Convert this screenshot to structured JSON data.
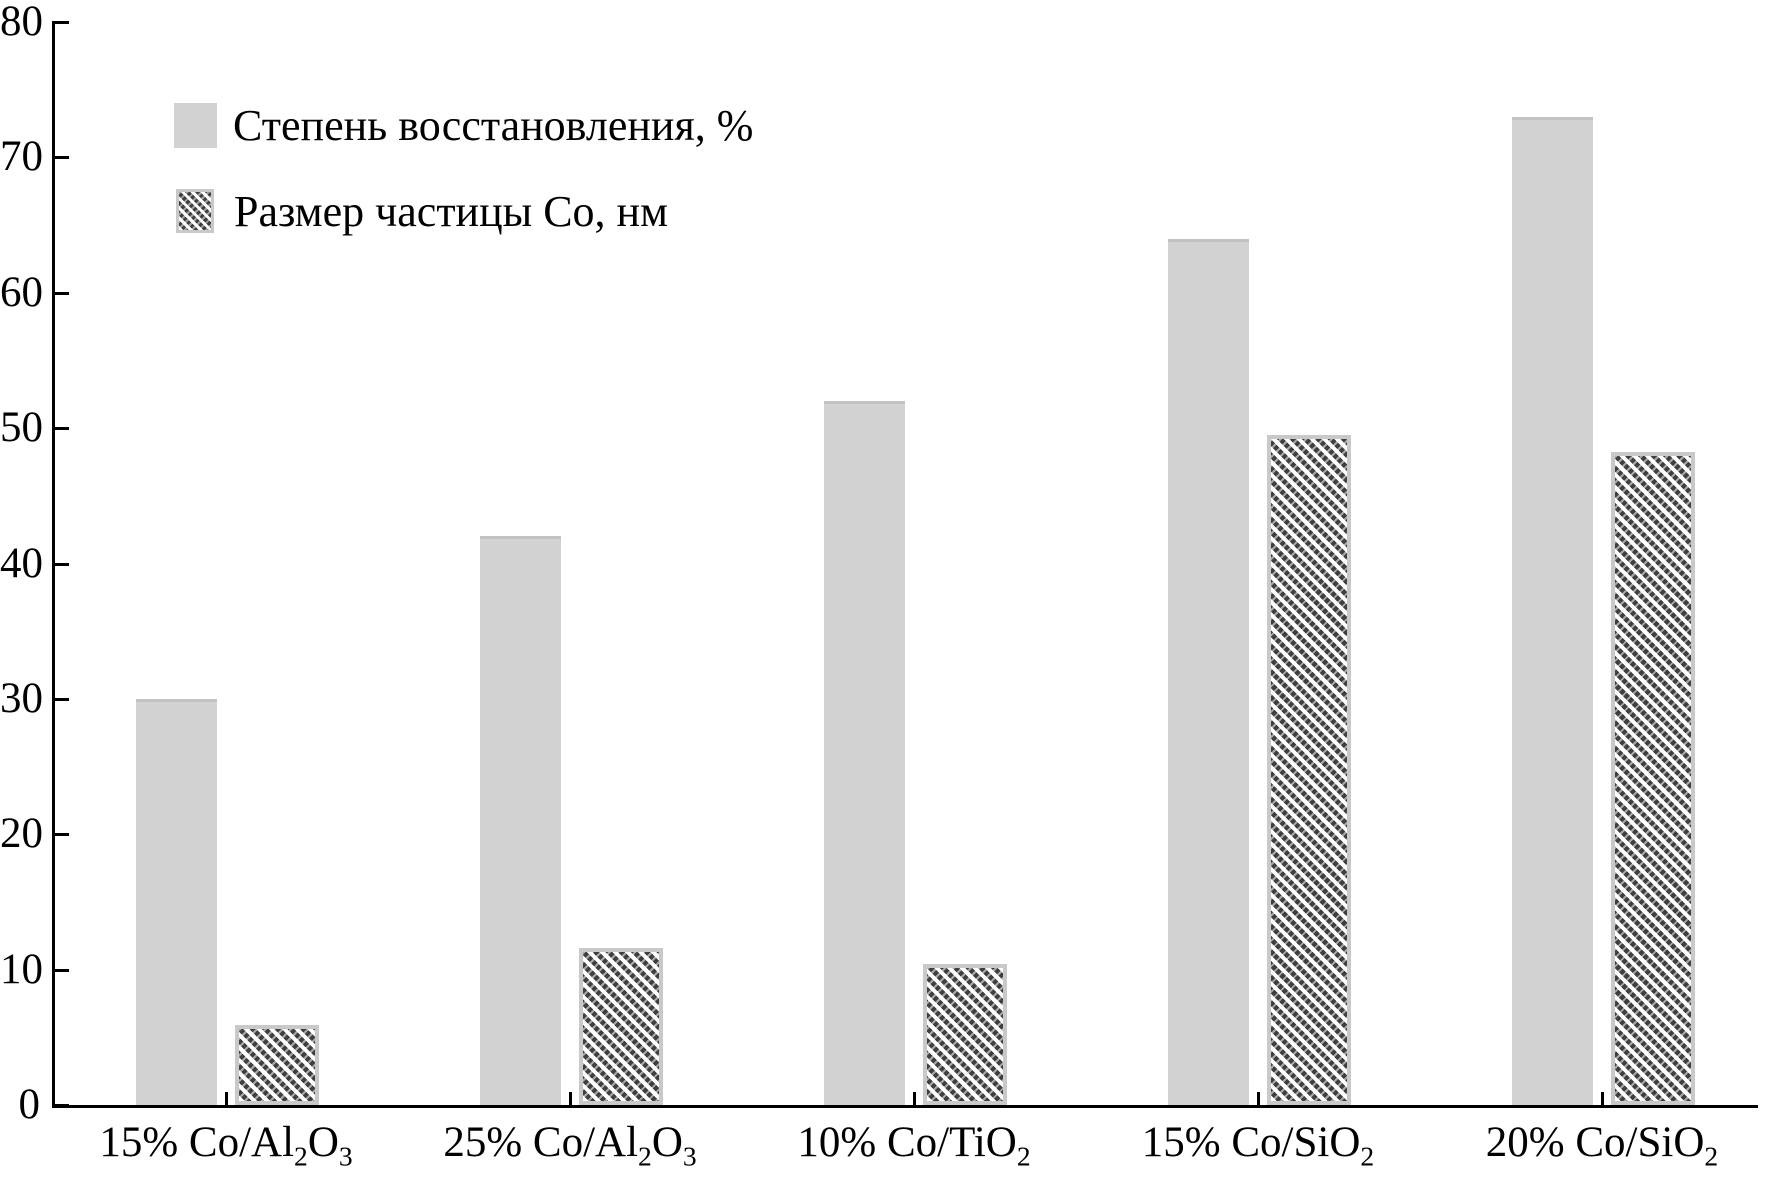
{
  "legend": {
    "items": [
      {
        "label": "Степень восстановления, %",
        "swatch": "solid"
      },
      {
        "label": "Размер частицы Co, нм",
        "swatch": "hatched"
      }
    ]
  },
  "colors": {
    "solid_bar": "#d2d2d2",
    "solid_bar_edge": "#c2c2c2",
    "hatch_line": "#3f3f3f",
    "hatch_border": "#c9c9c9",
    "axis": "#000000",
    "background": "#ffffff",
    "text": "#000000"
  },
  "chart_data": {
    "type": "bar",
    "title": "",
    "categories": [
      "15% Co/Al₂O₃",
      "25% Co/Al₂O₃",
      "10% Co/TiO₂",
      "15% Co/SiO₂",
      "20% Co/SiO₂"
    ],
    "categories_parts": [
      [
        {
          "t": "15% Co/Al"
        },
        {
          "t": "2",
          "sub": true
        },
        {
          "t": "O"
        },
        {
          "t": "3",
          "sub": true
        }
      ],
      [
        {
          "t": "25% Co/Al"
        },
        {
          "t": "2",
          "sub": true
        },
        {
          "t": "O"
        },
        {
          "t": "3",
          "sub": true
        }
      ],
      [
        {
          "t": "10% Co/TiO"
        },
        {
          "t": "2",
          "sub": true
        }
      ],
      [
        {
          "t": "15% Co/SiO"
        },
        {
          "t": "2",
          "sub": true
        }
      ],
      [
        {
          "t": "20% Co/SiO"
        },
        {
          "t": "2",
          "sub": true
        }
      ]
    ],
    "series": [
      {
        "name": "Степень восстановления, %",
        "style": "solid",
        "values": [
          30,
          42,
          52,
          64,
          73
        ]
      },
      {
        "name": "Размер частицы Co, нм",
        "style": "hatched",
        "values": [
          5.9,
          11.6,
          10.4,
          49.5,
          48.2
        ]
      }
    ],
    "ylim": [
      0,
      80
    ],
    "yticks": [
      0,
      10,
      20,
      30,
      40,
      50,
      60,
      70,
      80
    ],
    "xlabel": "",
    "ylabel": "",
    "grid": false,
    "legend_position": "upper left inside"
  }
}
